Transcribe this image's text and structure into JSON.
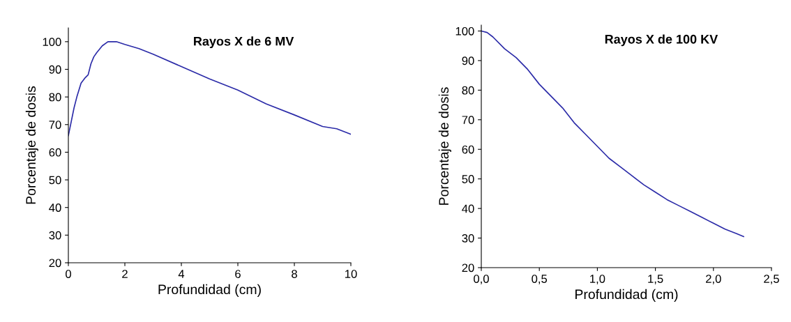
{
  "chart_data": [
    {
      "type": "line",
      "title": "Rayos X de 6 MV",
      "xlabel": "Profundidad (cm)",
      "ylabel": "Porcentaje de dosis",
      "xlim": [
        0,
        10
      ],
      "xticks": [
        0,
        2,
        4,
        6,
        8,
        10
      ],
      "ylim": [
        20,
        105
      ],
      "yticks": [
        20,
        30,
        40,
        50,
        60,
        70,
        80,
        90,
        100
      ],
      "grid": false,
      "legend": false,
      "marker": "none",
      "line_style": "solid",
      "series": [
        {
          "color": "#2b2ba8",
          "x": [
            0,
            0.1,
            0.2,
            0.3,
            0.45,
            0.6,
            0.7,
            0.8,
            0.9,
            1.0,
            1.2,
            1.4,
            1.7,
            2,
            2.5,
            3,
            4,
            5,
            6,
            7,
            8,
            9,
            9.5,
            10
          ],
          "values": [
            66,
            71,
            76,
            80,
            85,
            87,
            88,
            92,
            94.5,
            96,
            98.5,
            100,
            100,
            99,
            97.5,
            95.5,
            91,
            86.5,
            82.5,
            77.5,
            73.5,
            69.3,
            68.5,
            66.5
          ]
        }
      ]
    },
    {
      "type": "line",
      "title": "Rayos X de 100 KV",
      "xlabel": "Profundidad (cm)",
      "ylabel": "Porcentaje de dosis",
      "xlim": [
        0,
        2.5
      ],
      "xticks": [
        {
          "value": 0,
          "label": "0,0"
        },
        {
          "value": 0.5,
          "label": "0,5"
        },
        {
          "value": 1,
          "label": "1,0"
        },
        {
          "value": 1.5,
          "label": "1,5"
        },
        {
          "value": 2,
          "label": "2,0"
        },
        {
          "value": 2.5,
          "label": "2,5"
        }
      ],
      "ylim": [
        20,
        102
      ],
      "yticks": [
        20,
        30,
        40,
        50,
        60,
        70,
        80,
        90,
        100
      ],
      "grid": false,
      "legend": false,
      "marker": "none",
      "line_style": "solid",
      "series": [
        {
          "color": "#2b2ba8",
          "x": [
            0,
            0.05,
            0.1,
            0.2,
            0.3,
            0.4,
            0.5,
            0.6,
            0.7,
            0.8,
            0.9,
            1.0,
            1.1,
            1.2,
            1.3,
            1.4,
            1.5,
            1.6,
            1.7,
            1.8,
            1.9,
            2.0,
            2.1,
            2.2,
            2.26
          ],
          "values": [
            100,
            99.5,
            98,
            94,
            91,
            87,
            82,
            78,
            74,
            69,
            65,
            61,
            57,
            54,
            51,
            48,
            45.5,
            43,
            41,
            39,
            37,
            35,
            33,
            31.5,
            30.5
          ]
        }
      ]
    }
  ]
}
